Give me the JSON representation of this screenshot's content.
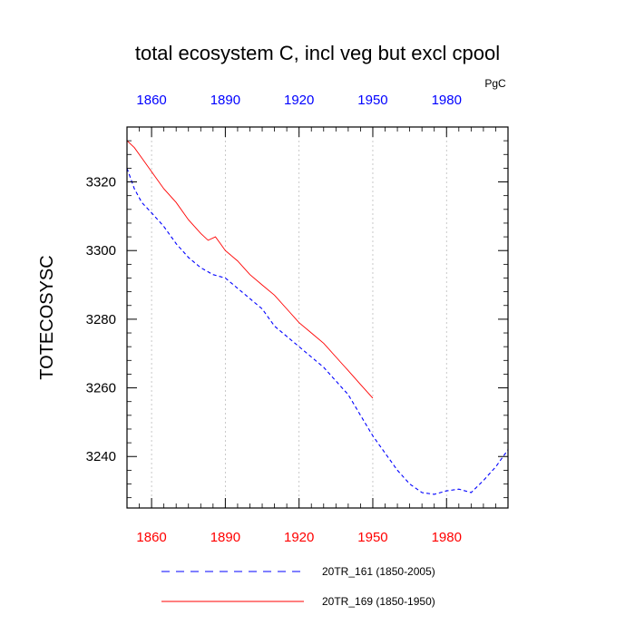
{
  "chart_data": {
    "type": "line",
    "title": "total ecosystem C, incl veg but excl cpool",
    "units": "PgC",
    "ylabel": "TOTECOSYSC",
    "xlabel": "",
    "xlim": [
      1850,
      2005
    ],
    "ylim": [
      3225,
      3336
    ],
    "x_ticks": [
      1860,
      1890,
      1920,
      1950,
      1980
    ],
    "x_tick_labels_top": [
      "1860",
      "1890",
      "1920",
      "1950",
      "1980"
    ],
    "x_tick_labels_bottom": [
      "1860",
      "1890",
      "1920",
      "1950",
      "1980"
    ],
    "y_ticks": [
      3240,
      3260,
      3280,
      3300,
      3320
    ],
    "y_tick_labels": [
      "3240",
      "3260",
      "3280",
      "3300",
      "3320"
    ],
    "vertical_gridlines": true,
    "series": [
      {
        "name": "20TR_161 (1850-2005)",
        "color": "#0000ff",
        "style": "dashed",
        "x": [
          1850,
          1853,
          1856,
          1860,
          1865,
          1870,
          1875,
          1880,
          1885,
          1890,
          1895,
          1900,
          1905,
          1910,
          1915,
          1920,
          1925,
          1930,
          1935,
          1940,
          1945,
          1950,
          1955,
          1960,
          1965,
          1970,
          1975,
          1980,
          1985,
          1990,
          1995,
          2000,
          2005
        ],
        "values": [
          3324,
          3318,
          3314,
          3311,
          3307,
          3302,
          3298,
          3295,
          3293,
          3292,
          3289,
          3286,
          3283,
          3278,
          3275,
          3272,
          3269,
          3266,
          3262,
          3258,
          3252,
          3246,
          3241,
          3236,
          3232,
          3229.5,
          3229,
          3230,
          3230.5,
          3229.5,
          3233,
          3237,
          3242
        ]
      },
      {
        "name": "20TR_169 (1850-1950)",
        "color": "#ff0000",
        "style": "solid",
        "x": [
          1850,
          1853,
          1856,
          1860,
          1865,
          1870,
          1875,
          1880,
          1883,
          1886,
          1888,
          1890,
          1895,
          1900,
          1905,
          1910,
          1915,
          1920,
          1925,
          1930,
          1935,
          1940,
          1945,
          1950
        ],
        "values": [
          3332,
          3330,
          3327,
          3323,
          3318,
          3314,
          3309,
          3305,
          3303,
          3304,
          3302,
          3300,
          3297,
          3293,
          3290,
          3287,
          3283,
          3279,
          3276,
          3273,
          3269,
          3265,
          3261,
          3257
        ]
      }
    ],
    "legend": [
      {
        "label": "20TR_161 (1850-2005)",
        "color": "#0000ff",
        "style": "dashed"
      },
      {
        "label": "20TR_169 (1850-1950)",
        "color": "#ff0000",
        "style": "solid"
      }
    ],
    "legend_position": "bottom"
  }
}
